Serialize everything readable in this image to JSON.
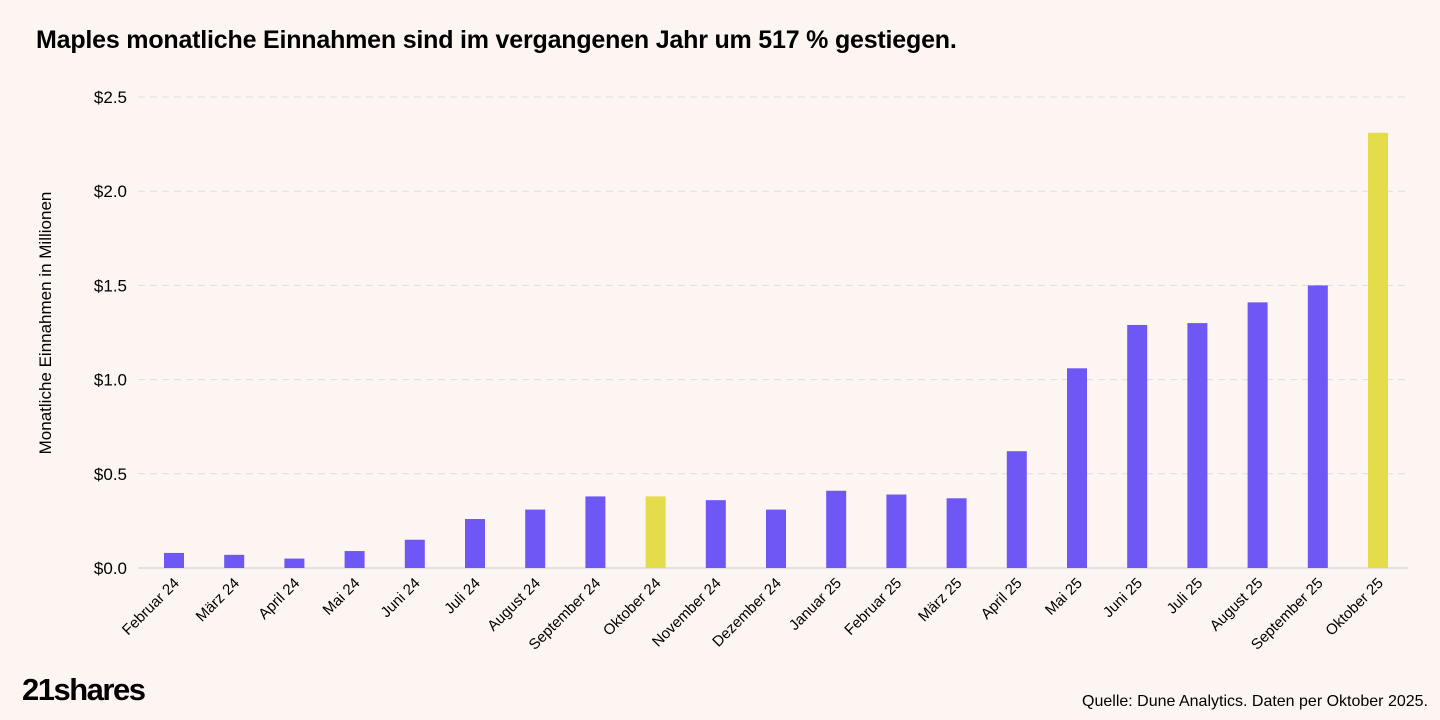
{
  "title": "Maples monatliche Einnahmen sind im vergangenen Jahr um 517 % gestiegen.",
  "source": "Quelle: Dune Analytics. Daten per Oktober 2025.",
  "logo": "21shares",
  "colors": {
    "background": "#fdf5f2",
    "bar": "#6e57f5",
    "highlight": "#e5dc4b",
    "grid": "#dddddd"
  },
  "chart_data": {
    "type": "bar",
    "title": "Maples monatliche Einnahmen sind im vergangenen Jahr um 517 % gestiegen.",
    "xlabel": "",
    "ylabel": "Monatliche Einnahmen in Millionen",
    "ylim": [
      0,
      2.5
    ],
    "yticks": [
      {
        "value": 0,
        "label": "$0.0"
      },
      {
        "value": 0.5,
        "label": "$0.5"
      },
      {
        "value": 1.0,
        "label": "$1.0"
      },
      {
        "value": 1.5,
        "label": "$1.5"
      },
      {
        "value": 2.0,
        "label": "$2.0"
      },
      {
        "value": 2.5,
        "label": "$2.5"
      }
    ],
    "grid": true,
    "categories": [
      "Februar 24",
      "März 24",
      "April 24",
      "Mai 24",
      "Juni 24",
      "Juli 24",
      "August 24",
      "September 24",
      "Oktober 24",
      "November 24",
      "Dezember 24",
      "Januar 25",
      "Februar 25",
      "März 25",
      "April 25",
      "Mai 25",
      "Juni 25",
      "Juli 25",
      "August 25",
      "September 25",
      "Oktober 25"
    ],
    "values": [
      0.08,
      0.07,
      0.05,
      0.09,
      0.15,
      0.26,
      0.31,
      0.38,
      0.38,
      0.36,
      0.31,
      0.41,
      0.39,
      0.37,
      0.62,
      1.06,
      1.29,
      1.3,
      1.41,
      1.5,
      2.31
    ],
    "highlighted": [
      "Oktober 24",
      "Oktober 25"
    ]
  }
}
